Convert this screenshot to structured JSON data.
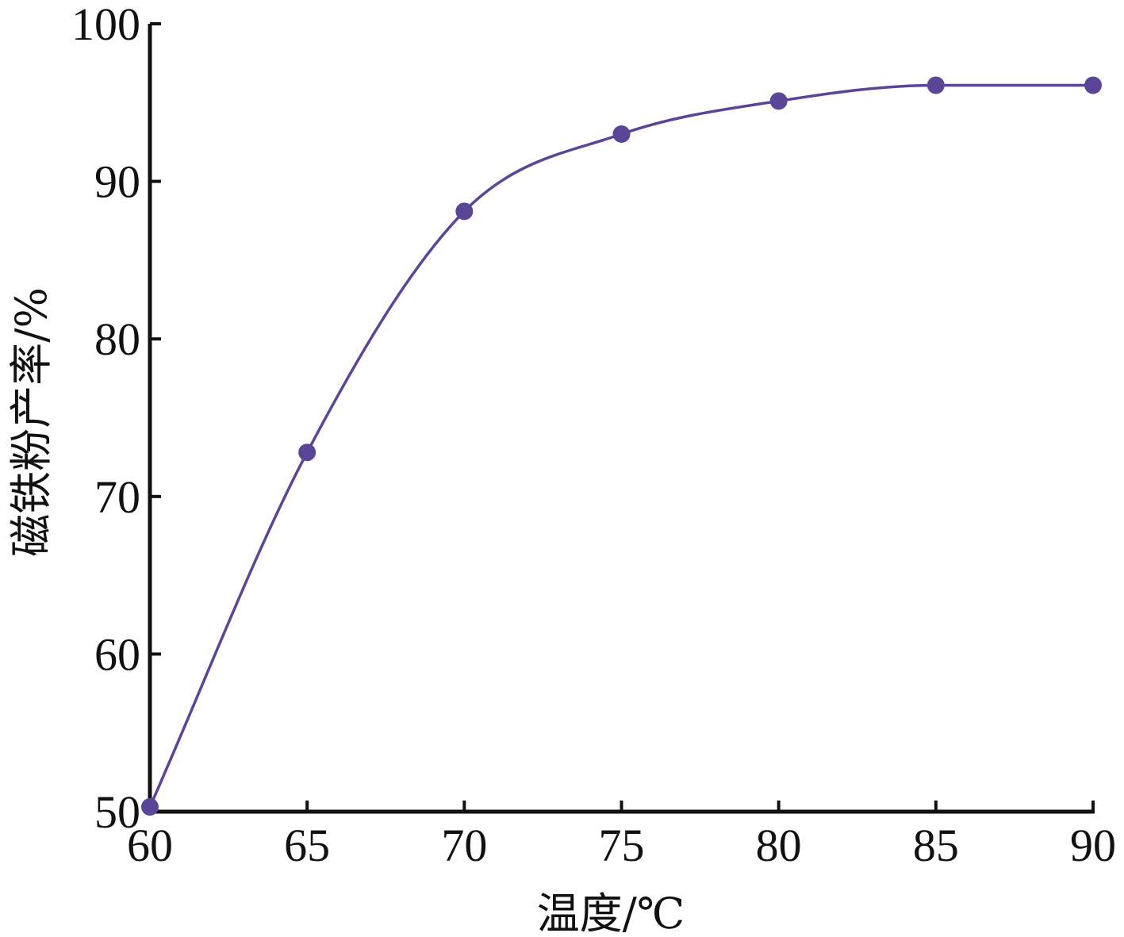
{
  "chart_data": {
    "type": "line",
    "title": "",
    "xlabel": "温度/℃",
    "ylabel": "磁铁粉产率/%",
    "x": [
      60,
      65,
      70,
      75,
      80,
      85,
      90
    ],
    "series": [
      {
        "values": [
          50.3,
          72.8,
          88.1,
          93.0,
          95.1,
          96.1,
          96.1
        ]
      }
    ],
    "xlim": [
      60,
      90
    ],
    "ylim": [
      50,
      100
    ],
    "xticks": [
      60,
      65,
      70,
      75,
      80,
      85,
      90
    ],
    "yticks": [
      50,
      60,
      70,
      80,
      90,
      100
    ],
    "grid": false,
    "line_color": "#5b4597",
    "marker_color": "#5b4597",
    "axis_color": "#111111"
  }
}
